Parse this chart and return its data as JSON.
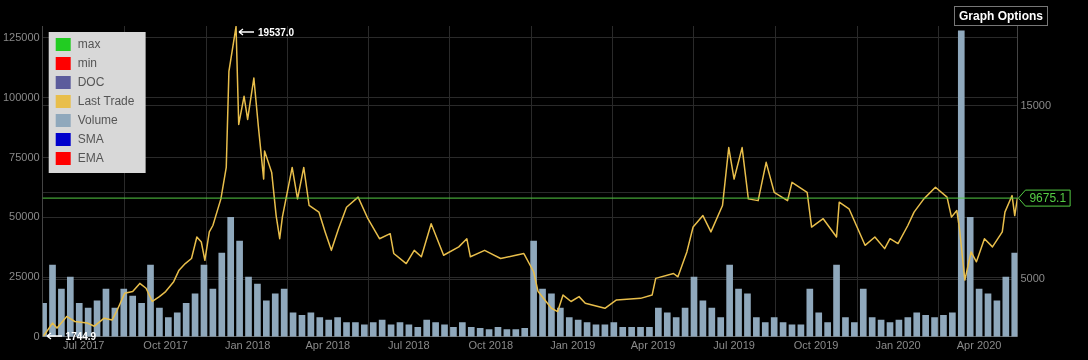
{
  "chart_data": {
    "type": "line",
    "xlim": [
      "2017-05-16",
      "2020-05-14"
    ],
    "xticks": [
      {
        "value": "2017-07-01",
        "label": "Jul 2017"
      },
      {
        "value": "2017-10-01",
        "label": "Oct 2017"
      },
      {
        "value": "2018-01-01",
        "label": "Jan 2018"
      },
      {
        "value": "2018-04-01",
        "label": "Apr 2018"
      },
      {
        "value": "2018-07-01",
        "label": "Jul 2018"
      },
      {
        "value": "2018-10-01",
        "label": "Oct 2018"
      },
      {
        "value": "2019-01-01",
        "label": "Jan 2019"
      },
      {
        "value": "2019-04-01",
        "label": "Apr 2019"
      },
      {
        "value": "2019-07-01",
        "label": "Jul 2019"
      },
      {
        "value": "2019-10-01",
        "label": "Oct 2019"
      },
      {
        "value": "2020-01-01",
        "label": "Jan 2020"
      },
      {
        "value": "2020-04-01",
        "label": "Apr 2020"
      }
    ],
    "ylim": [
      0,
      130000
    ],
    "yticks": [
      0,
      25000,
      50000,
      75000,
      100000,
      125000
    ],
    "y2lim": [
      1700,
      19570
    ],
    "y2ticks": [
      5000,
      {
        "value": 10000,
        "label": null
      },
      15000
    ],
    "grid": true,
    "legend": "top left",
    "marker": "none",
    "series": [
      {
        "name": "max",
        "color": "#22cc22"
      },
      {
        "name": "min",
        "color": "#ff0000"
      },
      {
        "name": "DOC",
        "color": "#5c5c9c"
      },
      {
        "name": "Last Trade",
        "color": "#e8be4b",
        "axis": "y2",
        "x": [
          "2017-05-17",
          "2017-05-27",
          "2017-06-01",
          "2017-06-12",
          "2017-06-21",
          "2017-07-05",
          "2017-07-13",
          "2017-07-24",
          "2017-08-02",
          "2017-08-07",
          "2017-08-16",
          "2017-08-25",
          "2017-09-02",
          "2017-09-09",
          "2017-09-16",
          "2017-09-24",
          "2017-10-01",
          "2017-10-10",
          "2017-10-16",
          "2017-10-23",
          "2017-10-30",
          "2017-11-05",
          "2017-11-10",
          "2017-11-14",
          "2017-11-19",
          "2017-11-23",
          "2017-12-02",
          "2017-12-08",
          "2017-12-11",
          "2017-12-19",
          "2017-12-22",
          "2017-12-28",
          "2018-01-01",
          "2018-01-08",
          "2018-01-13",
          "2018-01-19",
          "2018-01-20",
          "2018-01-28",
          "2018-02-02",
          "2018-02-06",
          "2018-02-09",
          "2018-02-20",
          "2018-02-26",
          "2018-03-05",
          "2018-03-11",
          "2018-03-22",
          "2018-03-29",
          "2018-04-05",
          "2018-04-13",
          "2018-04-22",
          "2018-05-05",
          "2018-05-16",
          "2018-05-29",
          "2018-06-10",
          "2018-06-14",
          "2018-06-28",
          "2018-07-07",
          "2018-07-15",
          "2018-07-26",
          "2018-08-09",
          "2018-08-26",
          "2018-09-04",
          "2018-09-08",
          "2018-09-24",
          "2018-10-12",
          "2018-11-07",
          "2018-11-18",
          "2018-11-23",
          "2018-12-08",
          "2018-12-15",
          "2018-12-21",
          "2018-12-30",
          "2019-01-08",
          "2019-01-15",
          "2019-02-06",
          "2019-02-19",
          "2019-03-18",
          "2019-03-31",
          "2019-04-04",
          "2019-04-24",
          "2019-04-29",
          "2019-05-09",
          "2019-05-16",
          "2019-05-27",
          "2019-06-05",
          "2019-06-18",
          "2019-06-25",
          "2019-07-01",
          "2019-07-10",
          "2019-07-17",
          "2019-07-28",
          "2019-08-06",
          "2019-08-15",
          "2019-08-30",
          "2019-09-04",
          "2019-09-21",
          "2019-09-26",
          "2019-10-09",
          "2019-10-24",
          "2019-10-27",
          "2019-11-07",
          "2019-11-25",
          "2019-12-06",
          "2019-12-17",
          "2019-12-23",
          "2020-01-01",
          "2020-01-12",
          "2020-01-19",
          "2020-01-30",
          "2020-02-12",
          "2020-02-25",
          "2020-03-01",
          "2020-03-07",
          "2020-03-10",
          "2020-03-16",
          "2020-03-23",
          "2020-03-29",
          "2020-04-07",
          "2020-04-16",
          "2020-04-27",
          "2020-04-30",
          "2020-05-08",
          "2020-05-11",
          "2020-05-14"
        ],
        "values": [
          1744.9,
          2490,
          2200,
          2870,
          2580,
          2490,
          2310,
          2770,
          2670,
          3170,
          4200,
          4300,
          4770,
          4490,
          3730,
          4010,
          4300,
          4870,
          5530,
          5910,
          6200,
          7440,
          7150,
          6100,
          7730,
          8100,
          9630,
          11440,
          16960,
          19537,
          13910,
          15530,
          14200,
          16580,
          13820,
          10770,
          12390,
          11150,
          8670,
          7340,
          8580,
          11440,
          9630,
          11440,
          9250,
          8870,
          7730,
          6670,
          7910,
          9150,
          9730,
          8490,
          7340,
          7630,
          6490,
          5910,
          6670,
          6300,
          8200,
          6390,
          6870,
          7340,
          6300,
          6670,
          6200,
          6490,
          5440,
          4300,
          3340,
          3150,
          4100,
          3730,
          4010,
          3630,
          3340,
          3820,
          3910,
          4100,
          5060,
          5340,
          5150,
          6580,
          8010,
          8670,
          7730,
          9250,
          12580,
          10770,
          12580,
          9630,
          9530,
          11730,
          10010,
          9530,
          10580,
          10010,
          8010,
          8490,
          7440,
          9440,
          9060,
          6960,
          7440,
          6770,
          7340,
          7060,
          8100,
          8870,
          9630,
          10300,
          9730,
          8580,
          8960,
          7910,
          4960,
          6580,
          6010,
          7340,
          6870,
          7730,
          8870,
          9820,
          8670,
          9675.1
        ]
      },
      {
        "name": "Volume",
        "color": "#8fa8bc",
        "type": "bar",
        "x": [
          "2017-05-17",
          "2017-05-27",
          "2017-06-06",
          "2017-06-16",
          "2017-06-26",
          "2017-07-06",
          "2017-07-16",
          "2017-07-26",
          "2017-08-05",
          "2017-08-15",
          "2017-08-25",
          "2017-09-04",
          "2017-09-14",
          "2017-09-24",
          "2017-10-04",
          "2017-10-14",
          "2017-10-24",
          "2017-11-03",
          "2017-11-13",
          "2017-11-23",
          "2017-12-03",
          "2017-12-13",
          "2017-12-23",
          "2018-01-02",
          "2018-01-12",
          "2018-01-22",
          "2018-02-01",
          "2018-02-11",
          "2018-02-21",
          "2018-03-03",
          "2018-03-13",
          "2018-03-23",
          "2018-04-02",
          "2018-04-12",
          "2018-04-22",
          "2018-05-02",
          "2018-05-12",
          "2018-05-22",
          "2018-06-01",
          "2018-06-11",
          "2018-06-21",
          "2018-07-01",
          "2018-07-11",
          "2018-07-21",
          "2018-07-31",
          "2018-08-10",
          "2018-08-20",
          "2018-08-30",
          "2018-09-09",
          "2018-09-19",
          "2018-09-29",
          "2018-10-09",
          "2018-10-19",
          "2018-10-29",
          "2018-11-08",
          "2018-11-18",
          "2018-11-28",
          "2018-12-08",
          "2018-12-18",
          "2018-12-28",
          "2019-01-07",
          "2019-01-17",
          "2019-01-27",
          "2019-02-06",
          "2019-02-16",
          "2019-02-26",
          "2019-03-08",
          "2019-03-18",
          "2019-03-28",
          "2019-04-07",
          "2019-04-17",
          "2019-04-27",
          "2019-05-07",
          "2019-05-17",
          "2019-05-27",
          "2019-06-06",
          "2019-06-16",
          "2019-06-26",
          "2019-07-06",
          "2019-07-16",
          "2019-07-26",
          "2019-08-05",
          "2019-08-15",
          "2019-08-25",
          "2019-09-04",
          "2019-09-14",
          "2019-09-24",
          "2019-10-04",
          "2019-10-14",
          "2019-10-24",
          "2019-11-03",
          "2019-11-13",
          "2019-11-23",
          "2019-12-03",
          "2019-12-13",
          "2019-12-23",
          "2020-01-02",
          "2020-01-12",
          "2020-01-22",
          "2020-02-01",
          "2020-02-11",
          "2020-02-21",
          "2020-03-02",
          "2020-03-12",
          "2020-03-22",
          "2020-04-01",
          "2020-04-11",
          "2020-04-21",
          "2020-05-01",
          "2020-05-11"
        ],
        "values": [
          14000,
          30000,
          20000,
          25000,
          14000,
          12000,
          15000,
          20000,
          12000,
          20000,
          17000,
          14000,
          30000,
          12000,
          8000,
          10000,
          14000,
          18000,
          30000,
          20000,
          35000,
          50000,
          40000,
          25000,
          22000,
          15000,
          18000,
          20000,
          10000,
          9000,
          10000,
          8000,
          7000,
          8000,
          6000,
          6000,
          5000,
          6000,
          7000,
          5000,
          6000,
          5000,
          4000,
          7000,
          6000,
          5000,
          4000,
          6000,
          4000,
          3500,
          3000,
          4000,
          3000,
          3000,
          3500,
          40000,
          20000,
          18000,
          12000,
          8000,
          7000,
          6000,
          5000,
          5000,
          6000,
          4000,
          4000,
          4000,
          4000,
          12000,
          10000,
          8000,
          12000,
          25000,
          15000,
          12000,
          8000,
          30000,
          20000,
          18000,
          8000,
          6000,
          8000,
          6000,
          5000,
          5000,
          20000,
          10000,
          6000,
          30000,
          8000,
          6000,
          20000,
          8000,
          7000,
          6000,
          7000,
          8000,
          10000,
          9000,
          8000,
          9000,
          10000,
          128000,
          50000,
          20000,
          18000,
          15000,
          25000,
          35000
        ]
      },
      {
        "name": "SMA",
        "color": "#0000cc"
      },
      {
        "name": "EMA",
        "color": "#ff0000"
      }
    ],
    "ref_lines": [
      {
        "axis": "y2",
        "value": 9675.1,
        "label": "9675.1",
        "color": "#55cc44"
      }
    ],
    "annotations": [
      "19537.0",
      "1744.9",
      "Graph Options"
    ]
  }
}
